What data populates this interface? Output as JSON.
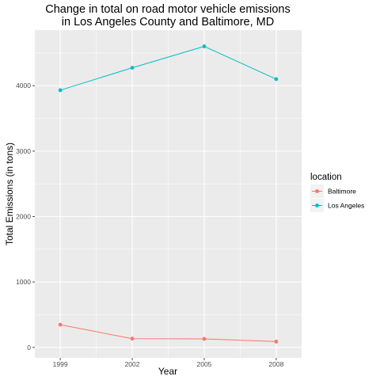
{
  "chart_data": {
    "type": "line",
    "title": [
      "Change in total on road motor vehicle emissions",
      "in Los Angeles County and Baltimore, MD"
    ],
    "xlabel": "Year",
    "ylabel": "Total Emissions (in tons)",
    "x": [
      1999,
      2002,
      2005,
      2008
    ],
    "x_ticks": [
      "1999",
      "2002",
      "2005",
      "2008"
    ],
    "y_ticks": [
      0,
      1000,
      2000,
      3000,
      4000
    ],
    "ylim": [
      -160,
      4850
    ],
    "grid": true,
    "legend": {
      "title": "location",
      "placement": "right"
    },
    "series": [
      {
        "name": "Baltimore",
        "color": "#F8766D",
        "values": [
          347,
          134,
          130,
          89
        ]
      },
      {
        "name": "Los Angeles",
        "color": "#00BFC4",
        "values": [
          3931,
          4274,
          4601,
          4101
        ]
      }
    ]
  },
  "colors": {
    "panel": "#ebebeb",
    "grid": "#ffffff",
    "tick": "#4d4d4d"
  }
}
